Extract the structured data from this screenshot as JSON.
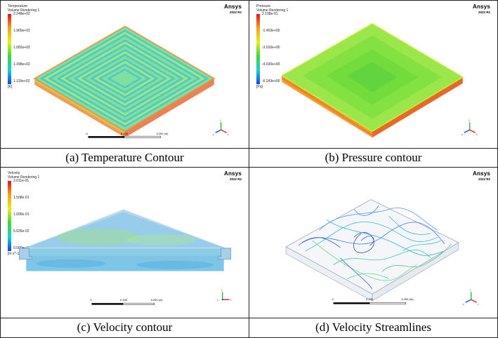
{
  "brand": "Ansys",
  "version": "2022 R2",
  "panels": [
    {
      "caption": "(a)  Temperature Contour",
      "legend_title_1": "Temperature",
      "legend_title_2": "Volume Rendering 1",
      "ticks": [
        "2.248e+02",
        "1.965e+02",
        "1.682e+02",
        "1.398e+02",
        "1.115e+02"
      ],
      "unit": "[K]",
      "scale": [
        "0",
        "0.100",
        "0.200 (m)"
      ]
    },
    {
      "caption": "(b)  Pressure contour",
      "legend_title_1": "Pressure",
      "legend_title_2": "Volume Rendering 1",
      "ticks": [
        "2.108e-01",
        "-1.403e+00",
        "-3.016e+00",
        "-4.630e+00",
        "-6.243e+00"
      ],
      "unit": "[Pa]"
    },
    {
      "caption": "(c)  Velocity contour",
      "legend_title_1": "Velocity",
      "legend_title_2": "Volume Rendering 1",
      "ticks": [
        "2.011e-01",
        "1.508e-01",
        "1.005e-01",
        "5.026e-02",
        "0.000e+00"
      ],
      "unit": "[m s^-1]",
      "scale": [
        "0",
        "0.100",
        "0.200 (m)"
      ]
    },
    {
      "caption": "(d)  Velocity Streamlines",
      "scale": [
        "0",
        "0.100",
        "0.200 (m)"
      ]
    }
  ],
  "colors": {
    "rainbow": [
      "#e8201a",
      "#f2a81c",
      "#e9f01e",
      "#3ddc3a",
      "#1fd6c8",
      "#1a5ef0"
    ]
  }
}
